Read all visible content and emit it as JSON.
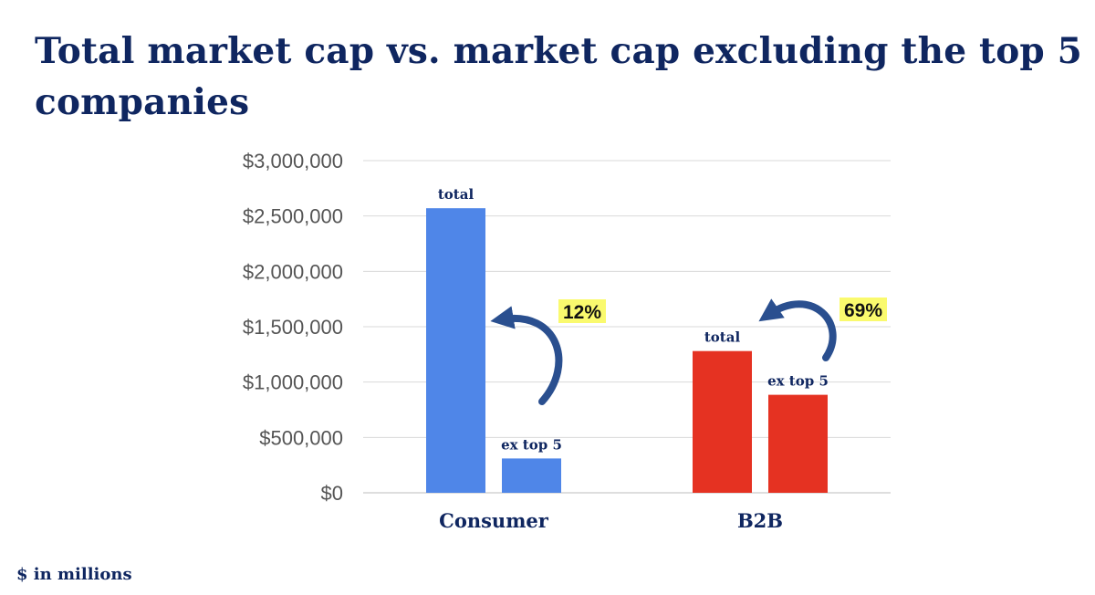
{
  "title": "Total market cap vs. market cap excluding the top 5 companies",
  "footnote": "$ in millions",
  "colors": {
    "consumer": "#4f86e8",
    "b2b": "#e53222",
    "navy": "#0f2660",
    "highlight": "#fafa6e",
    "arrow": "#2a4f8f"
  },
  "chart_data": {
    "type": "bar",
    "title": "Total market cap vs. market cap excluding the top 5 companies",
    "xlabel": "",
    "ylabel": "",
    "unit_note": "$ in millions",
    "ylim": [
      0,
      3000000
    ],
    "yticks": [
      0,
      500000,
      1000000,
      1500000,
      2000000,
      2500000,
      3000000
    ],
    "ytick_labels": [
      "$0",
      "$500,000",
      "$1,000,000",
      "$1,500,000",
      "$2,000,000",
      "$2,500,000",
      "$3,000,000"
    ],
    "grid": true,
    "categories": [
      {
        "name": "Consumer",
        "color": "#4f86e8",
        "pct": "12%",
        "bars": [
          {
            "label": "total",
            "value": 2570000
          },
          {
            "label": "ex top 5",
            "value": 310000
          }
        ]
      },
      {
        "name": "B2B",
        "color": "#e53222",
        "pct": "69%",
        "bars": [
          {
            "label": "total",
            "value": 1280000
          },
          {
            "label": "ex top 5",
            "value": 885000
          }
        ]
      }
    ]
  }
}
